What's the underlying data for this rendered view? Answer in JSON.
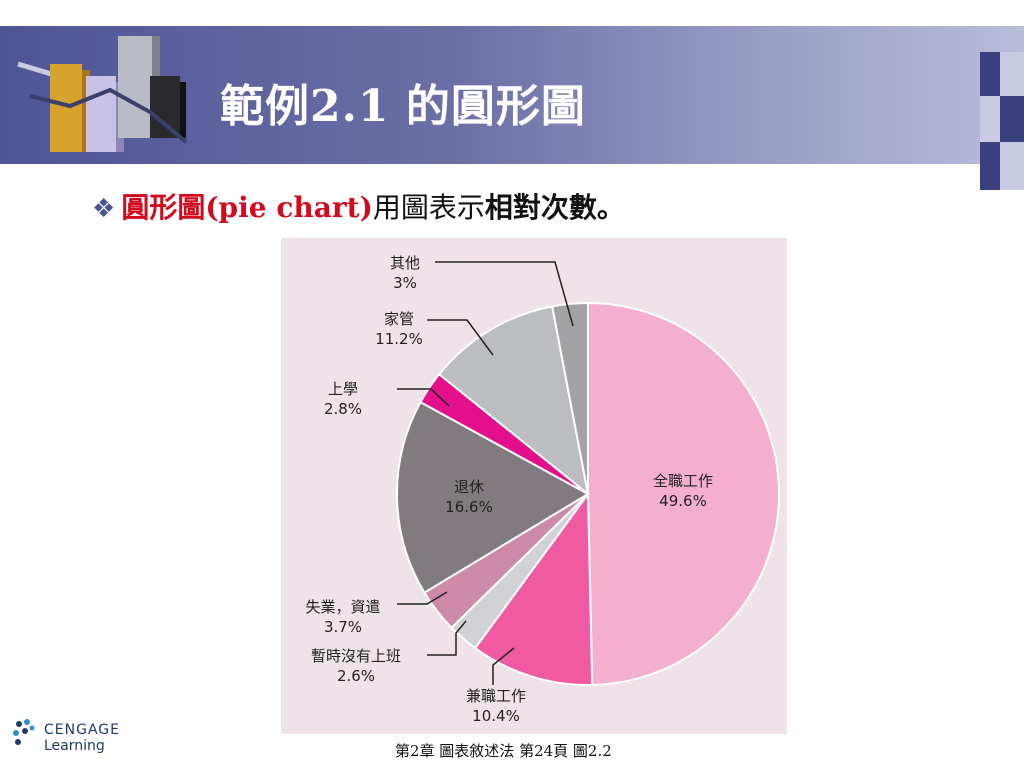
{
  "header": {
    "title": "範例2.1 的圓形圖"
  },
  "bullet": {
    "term": "圓形圖(pie chart)",
    "mid": "用圖表示",
    "emph": "相對次數",
    "end": "。"
  },
  "chart_data": {
    "type": "pie",
    "slices": [
      {
        "label": "全職工作",
        "value": 49.6,
        "value_label": "49.6%",
        "color": "#f4afcf"
      },
      {
        "label": "兼職工作",
        "value": 10.4,
        "value_label": "10.4%",
        "color": "#ef5aa0"
      },
      {
        "label": "暫時沒有上班",
        "value": 2.6,
        "value_label": "2.6%",
        "color": "#d2d2d4"
      },
      {
        "label": "失業，資遣",
        "value": 3.7,
        "value_label": "3.7%",
        "color": "#cc8aa8"
      },
      {
        "label": "退休",
        "value": 16.6,
        "value_label": "16.6%",
        "color": "#817a7e"
      },
      {
        "label": "上學",
        "value": 2.8,
        "value_label": "2.8%",
        "color": "#e40f8a"
      },
      {
        "label": "家管",
        "value": 11.2,
        "value_label": "11.2%",
        "color": "#bcbdc1"
      },
      {
        "label": "其他",
        "value": 3.0,
        "value_label": "3%",
        "color": "#a3a3a6"
      }
    ]
  },
  "logo": {
    "brand": "CENGAGE",
    "sub": "Learning"
  },
  "footer": {
    "text": "第2章  圖表敘述法  第24頁  圖2.2"
  }
}
